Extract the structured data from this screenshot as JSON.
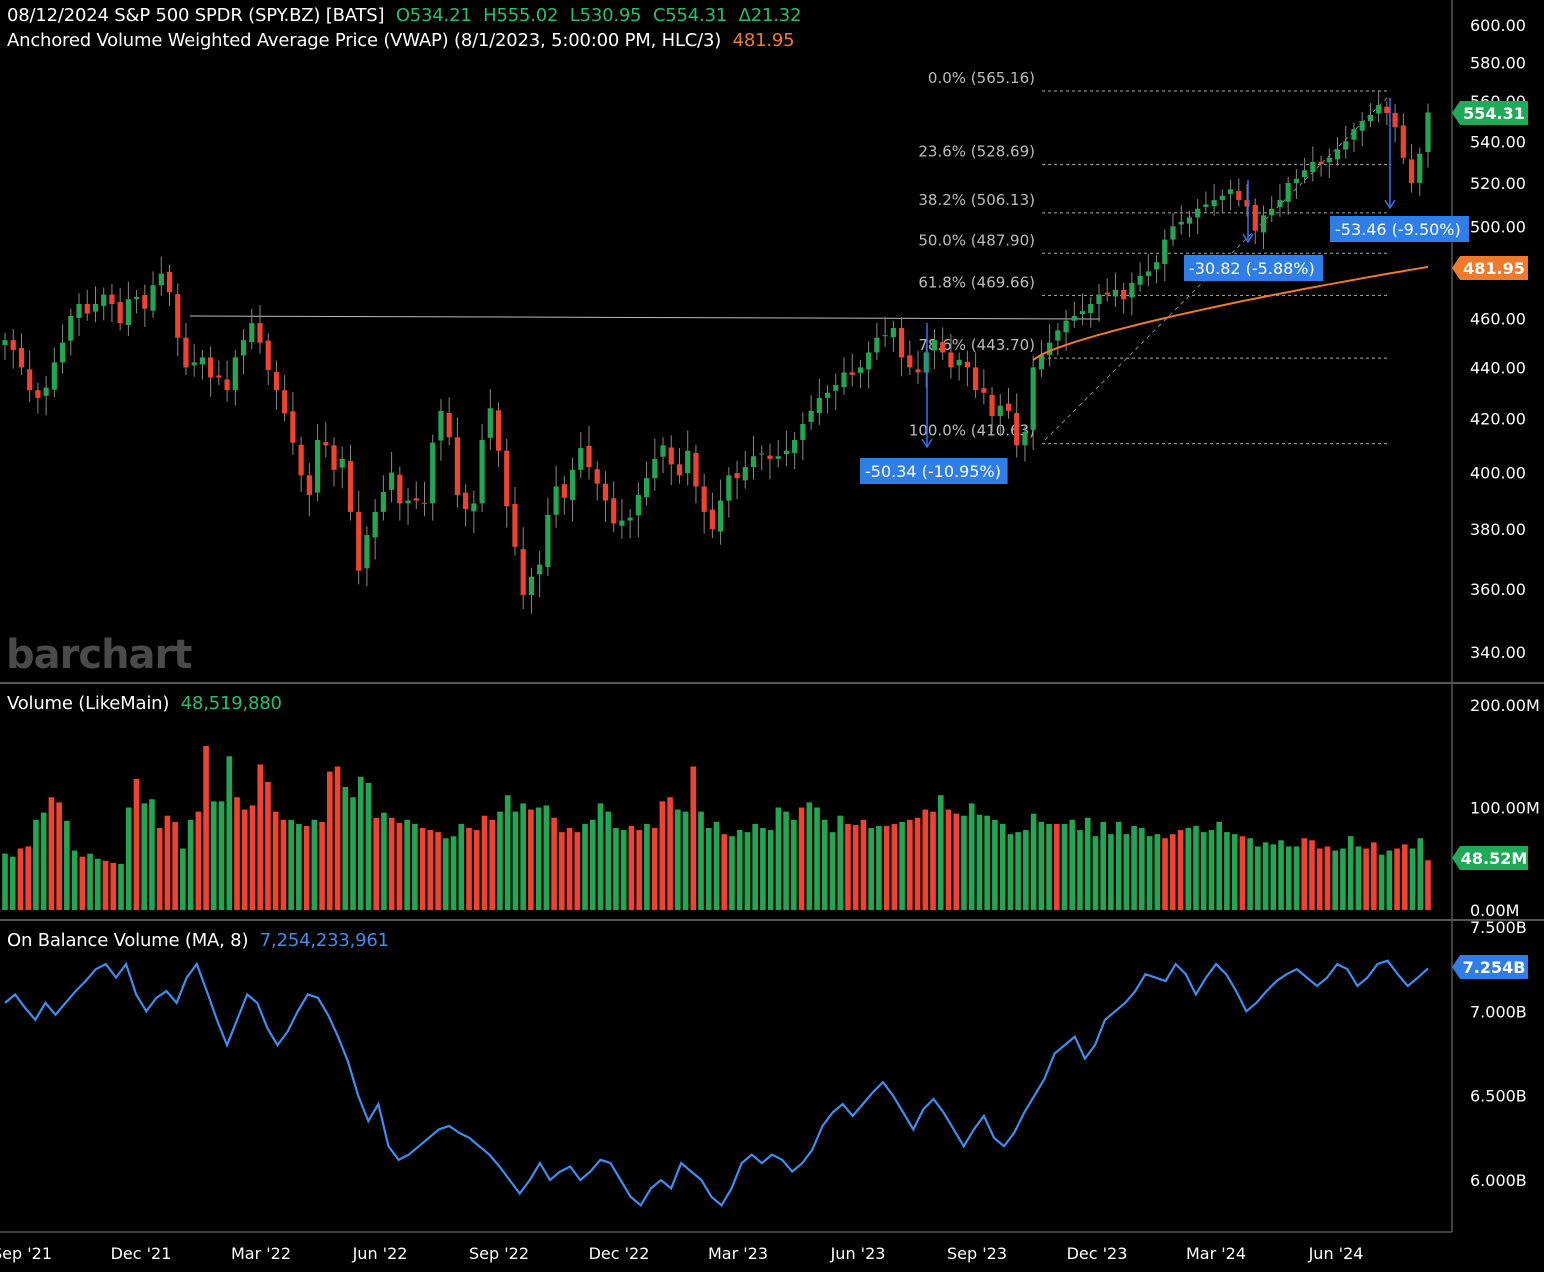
{
  "header": {
    "line1_prefix": "08/12/2024 S&P 500 SPDR (SPY.BZ) [BATS]",
    "o": "O534.21",
    "h": "H555.02",
    "l": "L530.95",
    "c": "C554.31",
    "chg": "Δ21.32",
    "vwap_label": "Anchored Volume Weighted Average Price (VWAP)  (8/1/2023, 5:00:00 PM, HLC/3)",
    "vwap_value": "481.95"
  },
  "watermark": "barchart",
  "volume_header": {
    "label": "Volume  (LikeMain)",
    "value": "48,519,880"
  },
  "obv_header": {
    "label": "On Balance Volume  (MA, 8)",
    "value": "7,254,233,961"
  },
  "colors": {
    "up": "#22a652",
    "down": "#f0432f",
    "vwap": "#f07a2c",
    "obv": "#3d8ef0",
    "badge_green": "#1faa57",
    "badge_orange": "#f07a2c",
    "badge_blue": "#2f7ee8",
    "measure": "#3a6df0"
  },
  "chart_data": [
    {
      "type": "candlestick",
      "y_axis_ticks": [
        "600.00",
        "580.00",
        "560.00",
        "540.00",
        "520.00",
        "500.00",
        "480.00",
        "460.00",
        "440.00",
        "420.00",
        "400.00",
        "380.00",
        "360.00",
        "340.00"
      ],
      "x_axis_ticks": [
        "Sep '21",
        "Dec '21",
        "Mar '22",
        "Jun '22",
        "Sep '22",
        "Dec '22",
        "Mar '23",
        "Jun '23",
        "Sep '23",
        "Dec '23",
        "Mar '24",
        "Jun '24"
      ],
      "last_price_badge": "554.31",
      "vwap_badge": "481.95",
      "fib_levels": [
        {
          "label": "0.0% (565.16)",
          "value": 565.16
        },
        {
          "label": "23.6% (528.69)",
          "value": 528.69
        },
        {
          "label": "38.2% (506.13)",
          "value": 506.13
        },
        {
          "label": "50.0% (487.90)",
          "value": 487.9
        },
        {
          "label": "61.8% (469.66)",
          "value": 469.66
        },
        {
          "label": "78.6% (443.70)",
          "value": 443.7
        },
        {
          "label": "100.0% (410.63)",
          "value": 410.63
        }
      ],
      "drawdowns": [
        "-50.34 (-10.95%)",
        "-30.82 (-5.88%)",
        "-53.46 (-9.50%)"
      ],
      "weekly_closes": [
        451,
        447,
        440,
        431,
        428,
        432,
        442,
        450,
        461,
        466,
        462,
        466,
        470,
        466,
        458,
        468,
        469,
        464,
        474,
        479,
        471,
        452,
        440,
        442,
        444,
        436,
        436,
        431,
        444,
        451,
        458,
        450,
        439,
        431,
        422,
        411,
        399,
        392,
        412,
        410,
        401,
        405,
        386,
        366,
        378,
        386,
        393,
        400,
        389,
        390,
        390,
        389,
        411,
        423,
        413,
        392,
        387,
        389,
        412,
        424,
        408,
        388,
        374,
        358,
        364,
        368,
        385,
        395,
        391,
        401,
        409,
        402,
        396,
        390,
        382,
        383,
        384,
        392,
        398,
        405,
        410,
        403,
        399,
        408,
        395,
        386,
        380,
        390,
        399,
        398,
        402,
        406,
        407,
        405,
        406,
        408,
        412,
        418,
        423,
        428,
        430,
        433,
        438,
        437,
        440,
        446,
        452,
        453,
        456,
        444,
        440,
        438,
        446,
        451,
        446,
        440,
        443,
        440,
        431,
        430,
        421,
        425,
        423,
        410,
        415,
        440,
        445,
        450,
        455,
        459,
        461,
        463,
        466,
        470,
        470,
        472,
        468,
        475,
        478,
        480,
        484,
        494,
        500,
        502,
        504,
        508,
        510,
        512,
        514,
        517,
        512,
        509,
        498,
        505,
        508,
        512,
        520,
        522,
        526,
        530,
        529,
        532,
        536,
        540,
        546,
        550,
        553,
        558,
        554,
        547,
        532,
        520,
        534,
        554.31
      ],
      "vwap_start_value": 443,
      "vwap_end_value": 481.95
    },
    {
      "type": "bar",
      "title": "Volume",
      "y_axis_ticks": [
        "200.00M",
        "100.00M",
        "0.00M"
      ],
      "last_value_badge": "48.52M",
      "values_millions": [
        55,
        52,
        60,
        62,
        88,
        95,
        110,
        105,
        87,
        58,
        52,
        55,
        50,
        48,
        46,
        45,
        100,
        128,
        104,
        108,
        80,
        92,
        86,
        60,
        88,
        96,
        160,
        106,
        106,
        150,
        110,
        98,
        102,
        142,
        125,
        96,
        88,
        88,
        84,
        82,
        88,
        86,
        135,
        140,
        120,
        110,
        130,
        124,
        90,
        95,
        90,
        85,
        88,
        84,
        80,
        78,
        76,
        70,
        72,
        84,
        80,
        78,
        92,
        88,
        96,
        112,
        96,
        104,
        98,
        100,
        102,
        90,
        76,
        80,
        76,
        84,
        88,
        104,
        96,
        80,
        78,
        82,
        78,
        84,
        80,
        106,
        110,
        98,
        96,
        140,
        96,
        80,
        86,
        74,
        72,
        78,
        76,
        84,
        80,
        78,
        100,
        96,
        88,
        100,
        105,
        100,
        88,
        76,
        92,
        84,
        83,
        88,
        80,
        82,
        82,
        84,
        86,
        88,
        90,
        98,
        96,
        112,
        98,
        94,
        92,
        104,
        93,
        92,
        88,
        84,
        74,
        76,
        78,
        94,
        86,
        84,
        84,
        84,
        88,
        78,
        90,
        72,
        86,
        74,
        86,
        74,
        82,
        80,
        72,
        74,
        70,
        74,
        78,
        80,
        82,
        76,
        78,
        86,
        76,
        74,
        72,
        70,
        62,
        66,
        64,
        68,
        62,
        62,
        70,
        68,
        60,
        62,
        58,
        60,
        72,
        62,
        60,
        66,
        54,
        58,
        60,
        64,
        60,
        70,
        48.52
      ],
      "up_flags": [
        1,
        1,
        0,
        0,
        1,
        1,
        0,
        0,
        1,
        1,
        0,
        1,
        1,
        0,
        0,
        1,
        1,
        0,
        1,
        1,
        0,
        0,
        0,
        1,
        1,
        0,
        0,
        1,
        1,
        1,
        0,
        0,
        0,
        0,
        0,
        0,
        0,
        1,
        1,
        0,
        1,
        0,
        0,
        0,
        1,
        1,
        1,
        1,
        0,
        1,
        0,
        0,
        1,
        1,
        0,
        0,
        0,
        1,
        1,
        1,
        0,
        0,
        0,
        0,
        1,
        1,
        1,
        1,
        0,
        1,
        1,
        0,
        0,
        0,
        0,
        1,
        1,
        1,
        1,
        1,
        1,
        0,
        0,
        1,
        0,
        0,
        0,
        1,
        1,
        0,
        1,
        1,
        1,
        0,
        1,
        1,
        1,
        1,
        1,
        1,
        1,
        1,
        1,
        0,
        1,
        1,
        1,
        1,
        1,
        0,
        0,
        0,
        1,
        1,
        0,
        0,
        1,
        0,
        0,
        0,
        0,
        1,
        0,
        0,
        1,
        1,
        1,
        1,
        1,
        1,
        1,
        1,
        1,
        1,
        1,
        1,
        0,
        1,
        1,
        1,
        1,
        1,
        1,
        1,
        1,
        1,
        1,
        1,
        1,
        1,
        0,
        0,
        0,
        1,
        1,
        1,
        1,
        1,
        1,
        1,
        0,
        1,
        1,
        1,
        1,
        1,
        1,
        1,
        0,
        0,
        0,
        0,
        1,
        1
      ]
    },
    {
      "type": "line",
      "title": "On Balance Volume",
      "y_axis_ticks": [
        "7.500B",
        "7.000B",
        "6.500B",
        "6.000B"
      ],
      "last_value_badge": "7.254B",
      "values_billions": [
        7.05,
        7.1,
        7.02,
        6.95,
        7.05,
        6.98,
        7.05,
        7.12,
        7.18,
        7.25,
        7.28,
        7.2,
        7.28,
        7.1,
        7.0,
        7.08,
        7.12,
        7.05,
        7.2,
        7.28,
        7.12,
        6.95,
        6.8,
        6.95,
        7.1,
        7.05,
        6.9,
        6.8,
        6.88,
        7.0,
        7.1,
        7.08,
        6.98,
        6.85,
        6.7,
        6.5,
        6.35,
        6.45,
        6.2,
        6.12,
        6.15,
        6.2,
        6.25,
        6.3,
        6.32,
        6.28,
        6.25,
        6.2,
        6.15,
        6.08,
        6.0,
        5.92,
        6.0,
        6.1,
        6.0,
        6.05,
        6.08,
        6.0,
        6.05,
        6.12,
        6.1,
        6.0,
        5.9,
        5.85,
        5.95,
        6.0,
        5.95,
        6.1,
        6.05,
        6.0,
        5.9,
        5.85,
        5.95,
        6.1,
        6.15,
        6.1,
        6.15,
        6.12,
        6.05,
        6.1,
        6.18,
        6.32,
        6.4,
        6.45,
        6.38,
        6.45,
        6.52,
        6.58,
        6.5,
        6.4,
        6.3,
        6.42,
        6.48,
        6.4,
        6.3,
        6.2,
        6.3,
        6.38,
        6.25,
        6.2,
        6.28,
        6.4,
        6.5,
        6.6,
        6.75,
        6.8,
        6.85,
        6.72,
        6.8,
        6.95,
        7.0,
        7.05,
        7.12,
        7.22,
        7.2,
        7.18,
        7.28,
        7.22,
        7.1,
        7.2,
        7.28,
        7.22,
        7.12,
        7.0,
        7.05,
        7.12,
        7.18,
        7.22,
        7.25,
        7.2,
        7.15,
        7.2,
        7.28,
        7.25,
        7.15,
        7.2,
        7.28,
        7.3,
        7.22,
        7.15,
        7.2,
        7.254
      ],
      "series": [
        {
          "name": "On Balance Volume",
          "values_ref": "values_billions"
        }
      ]
    }
  ]
}
